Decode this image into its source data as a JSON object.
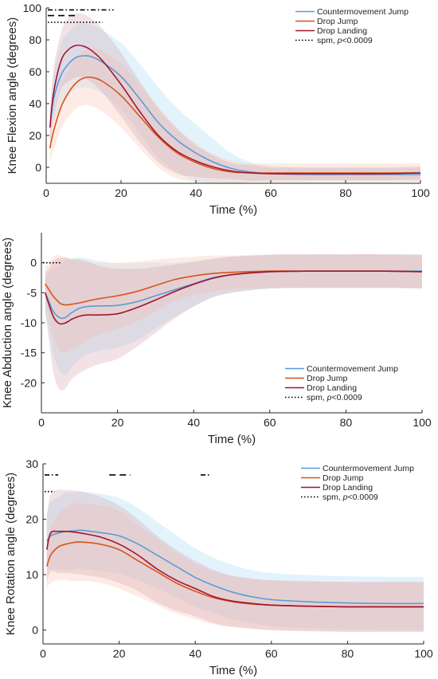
{
  "colors": {
    "countermovement_jump": "#5b9bd5",
    "drop_jump": "#d95319",
    "drop_landing": "#a2142f",
    "spm": "#000000"
  },
  "chart_data": [
    {
      "type": "line",
      "id": "flexion",
      "xlabel": "Time (%)",
      "ylabel": "Knee Flexion angle (degrees)",
      "xlim": [
        0,
        100
      ],
      "ylim": [
        -10,
        100
      ],
      "xticks": [
        "0",
        "20",
        "40",
        "60",
        "80",
        "100"
      ],
      "yticks": [
        "0",
        "20",
        "40",
        "60",
        "80",
        "100"
      ],
      "legend_position": "top-right",
      "legend": [
        "Countermovement Jump",
        "Drop Jump",
        "Drop Landing"
      ],
      "legend_spm": {
        "prefix": "spm, ",
        "p": "p",
        "suffix": "<0.0009"
      },
      "x": [
        1,
        2,
        4,
        6,
        8,
        10,
        12,
        15,
        20,
        25,
        30,
        35,
        40,
        45,
        50,
        55,
        60,
        70,
        80,
        90,
        100
      ],
      "series": [
        {
          "name": "Countermovement Jump",
          "color": "countermovement_jump",
          "values": [
            25,
            43,
            58,
            65,
            69,
            70,
            69.5,
            66,
            57,
            43,
            28,
            17,
            9,
            3,
            -1,
            -3,
            -4,
            -4.5,
            -4.5,
            -4.5,
            -4.5
          ],
          "band": [
            10,
            15,
            20,
            20,
            20,
            20,
            20,
            20,
            21,
            22,
            22,
            20,
            18,
            14,
            9,
            6,
            5,
            4,
            4,
            4,
            4
          ]
        },
        {
          "name": "Drop Jump",
          "color": "drop_jump",
          "values": [
            12,
            23,
            38,
            47,
            53,
            56,
            56.5,
            54,
            45,
            32,
            19,
            9,
            3,
            -1,
            -3,
            -3.5,
            -3.5,
            -3.5,
            -3.5,
            -3.5,
            -3.5
          ],
          "band": [
            8,
            12,
            14,
            15,
            16,
            17,
            18,
            19,
            20,
            20,
            19,
            16,
            12,
            9,
            7,
            6,
            6,
            6,
            6,
            6,
            6
          ]
        },
        {
          "name": "Drop Landing",
          "color": "drop_landing",
          "values": [
            25,
            47,
            67,
            74,
            76.5,
            76,
            73.5,
            67,
            52,
            35,
            20,
            10,
            4,
            0,
            -2.5,
            -3.5,
            -4,
            -4,
            -4,
            -4,
            -3.5
          ],
          "band": [
            10,
            15,
            18,
            20,
            20,
            20,
            20,
            20,
            20,
            19,
            17,
            14,
            10,
            7,
            5,
            5,
            4,
            4,
            4,
            4,
            4
          ]
        }
      ],
      "spm_bars": [
        {
          "y": 98.8,
          "style": "dashdot",
          "x": [
            0,
            18
          ]
        },
        {
          "y": 95.2,
          "style": "dashed",
          "x": [
            0,
            8
          ]
        },
        {
          "y": 91.0,
          "style": "dotted",
          "x": [
            0,
            15
          ]
        }
      ]
    },
    {
      "type": "line",
      "id": "abduction",
      "xlabel": "Time (%)",
      "ylabel": "Knee Abduction angle (degrees)",
      "xlim": [
        0,
        100
      ],
      "ylim": [
        -25,
        5
      ],
      "xticks": [
        "0",
        "20",
        "40",
        "60",
        "80",
        "100"
      ],
      "yticks": [
        "0",
        "-5",
        "-10",
        "-15",
        "-20"
      ],
      "legend_position": "bottom-right",
      "legend": [
        "Countermovement Jump",
        "Drop Jump",
        "Drop Landing"
      ],
      "legend_spm": {
        "prefix": "spm, ",
        "p": "p",
        "suffix": "<0.0009"
      },
      "x": [
        1,
        2,
        3,
        4,
        5,
        6,
        7,
        8,
        10,
        12,
        15,
        20,
        25,
        30,
        35,
        40,
        45,
        50,
        60,
        70,
        80,
        90,
        100
      ],
      "series": [
        {
          "name": "Countermovement Jump",
          "color": "countermovement_jump",
          "values": [
            -5,
            -6.5,
            -8,
            -8.8,
            -9.2,
            -9.2,
            -8.8,
            -8.3,
            -7.6,
            -7.3,
            -7.2,
            -7.1,
            -6.5,
            -5.5,
            -4.5,
            -3.5,
            -2.5,
            -2,
            -1.5,
            -1.4,
            -1.4,
            -1.4,
            -1.4
          ],
          "band": [
            3,
            5,
            7,
            8,
            9,
            9.5,
            9.5,
            9,
            8.5,
            8,
            7.5,
            7,
            6.5,
            5.5,
            4.5,
            3.8,
            3.2,
            3,
            2.8,
            2.8,
            2.8,
            2.8,
            2.8
          ]
        },
        {
          "name": "Drop Jump",
          "color": "drop_jump",
          "values": [
            -3.5,
            -4.5,
            -5.5,
            -6.2,
            -6.8,
            -7,
            -7,
            -6.9,
            -6.7,
            -6.4,
            -6,
            -5.5,
            -4.8,
            -3.8,
            -2.8,
            -2.2,
            -1.8,
            -1.6,
            -1.4,
            -1.4,
            -1.4,
            -1.4,
            -1.5
          ],
          "band": [
            3,
            4.5,
            6.5,
            7.5,
            8,
            8,
            7.8,
            7.5,
            7,
            6.5,
            6,
            5.5,
            5,
            4.3,
            3.6,
            3.2,
            3,
            2.8,
            2.8,
            2.8,
            2.8,
            2.8,
            2.8
          ]
        },
        {
          "name": "Drop Landing",
          "color": "drop_landing",
          "values": [
            -5,
            -7,
            -8.8,
            -9.8,
            -10.2,
            -10.1,
            -9.8,
            -9.4,
            -8.9,
            -8.7,
            -8.7,
            -8.5,
            -7.5,
            -6.2,
            -4.8,
            -3.6,
            -2.6,
            -2,
            -1.5,
            -1.4,
            -1.4,
            -1.4,
            -1.5
          ],
          "band": [
            3.5,
            6,
            9,
            10.5,
            11,
            11,
            10.5,
            10,
            9.5,
            9,
            8.2,
            7.5,
            6.5,
            5.5,
            4.5,
            3.7,
            3.2,
            3,
            2.8,
            2.8,
            2.8,
            2.8,
            2.8
          ]
        }
      ],
      "spm_bars": [
        {
          "y": 0,
          "style": "dotted",
          "x": [
            0,
            5
          ]
        }
      ]
    },
    {
      "type": "line",
      "id": "rotation",
      "xlabel": "Time (%)",
      "ylabel": "Knee Rotation angle (degrees)",
      "xlim": [
        0,
        100
      ],
      "ylim": [
        -2.5,
        30
      ],
      "xticks": [
        "0",
        "20",
        "40",
        "60",
        "80",
        "100"
      ],
      "yticks": [
        "0",
        "10",
        "20",
        "30"
      ],
      "legend_position": "top-right",
      "legend": [
        "Countermovement Jump",
        "Drop Jump",
        "Drop Landing"
      ],
      "legend_spm": {
        "prefix": "spm, ",
        "p": "p",
        "suffix": "<0.0009"
      },
      "x": [
        1,
        2,
        4,
        6,
        8,
        10,
        15,
        20,
        25,
        30,
        35,
        40,
        45,
        50,
        55,
        60,
        70,
        80,
        90,
        100
      ],
      "series": [
        {
          "name": "Countermovement Jump",
          "color": "countermovement_jump",
          "values": [
            16,
            17,
            17.5,
            17.8,
            17.9,
            18,
            17.6,
            17,
            15.5,
            13.5,
            11.5,
            9.5,
            8,
            6.8,
            6,
            5.5,
            5.1,
            4.9,
            4.8,
            4.8
          ],
          "band": [
            5,
            6,
            6.5,
            7,
            7,
            7,
            7,
            6.8,
            6.5,
            6,
            5.6,
            5.3,
            5,
            4.9,
            4.8,
            4.8,
            4.8,
            4.8,
            4.8,
            4.8
          ]
        },
        {
          "name": "Drop Jump",
          "color": "drop_jump",
          "values": [
            11.5,
            13.5,
            15,
            15.5,
            15.8,
            15.9,
            15.5,
            14.5,
            12.5,
            10.5,
            8.5,
            7,
            5.8,
            5.1,
            4.7,
            4.5,
            4.3,
            4.2,
            4.2,
            4.2
          ],
          "band": [
            4,
            5,
            6,
            6.5,
            7,
            7,
            7,
            7,
            6.5,
            6,
            5.5,
            5,
            4.8,
            4.6,
            4.5,
            4.5,
            4.5,
            4.5,
            4.5,
            4.5
          ]
        },
        {
          "name": "Drop Landing",
          "color": "drop_landing",
          "values": [
            14.5,
            17.5,
            17.8,
            17.8,
            17.7,
            17.5,
            16.8,
            15.5,
            13.5,
            11,
            9,
            7.5,
            6,
            5.2,
            4.8,
            4.5,
            4.3,
            4.2,
            4.2,
            4.2
          ],
          "band": [
            6,
            7,
            7.5,
            7.5,
            7.5,
            7.5,
            7.3,
            7,
            6.5,
            6,
            5.5,
            5,
            4.8,
            4.6,
            4.5,
            4.5,
            4.5,
            4.5,
            4.5,
            4.5
          ]
        }
      ],
      "spm_bars": [
        {
          "y": 28,
          "style": "dashdot",
          "x": [
            0,
            4
          ]
        },
        {
          "y": 28,
          "style": "dashed",
          "x": [
            17,
            23
          ]
        },
        {
          "y": 28,
          "style": "dashdot",
          "x": [
            41,
            44
          ]
        },
        {
          "y": 25,
          "style": "dotted",
          "x": [
            0,
            3
          ]
        }
      ]
    }
  ]
}
